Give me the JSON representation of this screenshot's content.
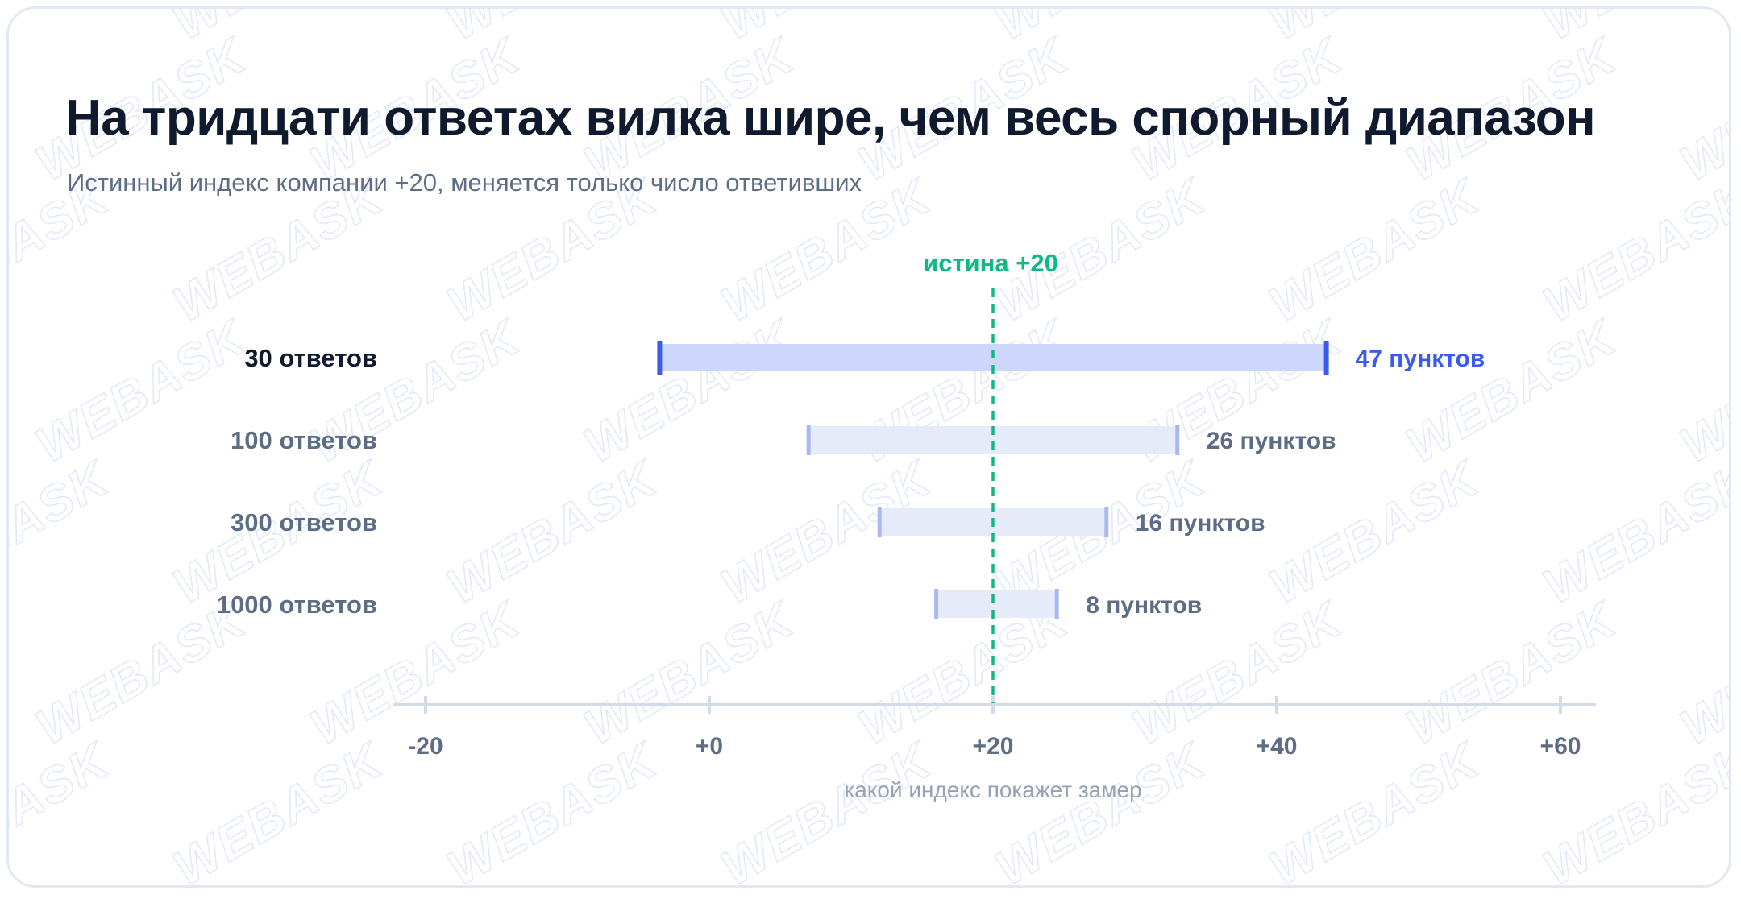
{
  "header": {
    "title": "На тридцати ответах вилка шире, чем весь спорный диапазон",
    "subtitle": "Истинный индекс компании +20, меняется только число ответивших"
  },
  "watermark": {
    "text": "WEBASK"
  },
  "colors": {
    "title": "#0f1a2e",
    "muted": "#5d6d86",
    "accent": "#3b5bf0",
    "accent_bar": "#cdd6fb",
    "muted_bar": "#e6ebfa",
    "muted_cap": "#a9b8ee",
    "truth": "#10b981",
    "axis": "#d3dbe8"
  },
  "chart_data": {
    "type": "range",
    "truth": {
      "value": 20,
      "label": "истина +20"
    },
    "rows": [
      {
        "label": "30 ответов",
        "low": -3.5,
        "high": 43.5,
        "value_label": "47 пунктов",
        "highlight": true
      },
      {
        "label": "100 ответов",
        "low": 7,
        "high": 33,
        "value_label": "26 пунктов",
        "highlight": false
      },
      {
        "label": "300 ответов",
        "low": 12,
        "high": 28,
        "value_label": "16 пунктов",
        "highlight": false
      },
      {
        "label": "1000 ответов",
        "low": 16,
        "high": 24.5,
        "value_label": "8 пунктов",
        "highlight": false
      }
    ],
    "x_axis": {
      "label": "какой индекс покажет замер",
      "range": [
        -22,
        62
      ],
      "ticks": [
        {
          "value": -20,
          "label": "-20"
        },
        {
          "value": 0,
          "label": "+0"
        },
        {
          "value": 20,
          "label": "+20"
        },
        {
          "value": 40,
          "label": "+40"
        },
        {
          "value": 60,
          "label": "+60"
        }
      ]
    }
  }
}
